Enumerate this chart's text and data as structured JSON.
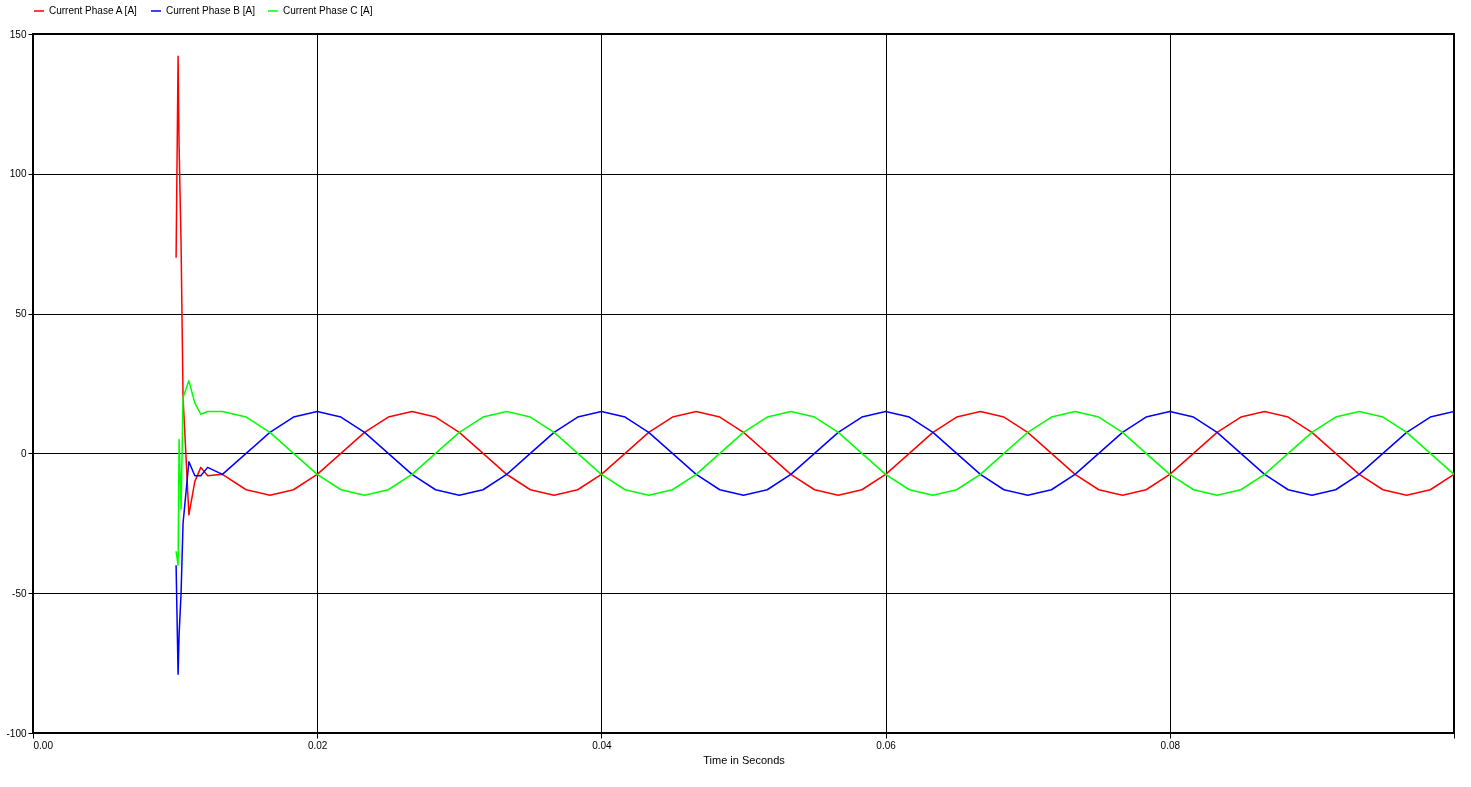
{
  "chart_data": {
    "type": "line",
    "xlabel": "Time in Seconds",
    "x": [
      0.01007,
      0.01021,
      0.01028,
      0.01042,
      0.01056,
      0.01097,
      0.01139,
      0.01181,
      0.01229,
      0.01333,
      0.015,
      0.01667,
      0.01833,
      0.02,
      0.02167,
      0.02333,
      0.025,
      0.02667,
      0.02833,
      0.03,
      0.03167,
      0.03333,
      0.035,
      0.03667,
      0.03833,
      0.04,
      0.04167,
      0.04333,
      0.045,
      0.04667,
      0.04833,
      0.05,
      0.05167,
      0.05333,
      0.055,
      0.05667,
      0.05833,
      0.06,
      0.06167,
      0.06333,
      0.065,
      0.06667,
      0.06833,
      0.07,
      0.07167,
      0.07333,
      0.075,
      0.07667,
      0.07833,
      0.08,
      0.08167,
      0.08333,
      0.085,
      0.08667,
      0.08833,
      0.09,
      0.09167,
      0.09333,
      0.095,
      0.09667,
      0.09833,
      0.1
    ],
    "series": [
      {
        "name": "Current Phase A [A]",
        "color": "#ff0000",
        "values": [
          70,
          142,
          110,
          75,
          20,
          -22,
          -10,
          -5,
          -8,
          -7.5,
          -13,
          -15,
          -13,
          -7.5,
          0,
          7.5,
          13,
          15,
          13,
          7.5,
          0,
          -7.5,
          -13,
          -15,
          -13,
          -7.5,
          0,
          7.5,
          13,
          15,
          13,
          7.5,
          0,
          -7.5,
          -13,
          -15,
          -13,
          -7.5,
          0,
          7.5,
          13,
          15,
          13,
          7.5,
          0,
          -7.5,
          -13,
          -15,
          -13,
          -7.5,
          0,
          7.5,
          13,
          15,
          13,
          7.5,
          0,
          -7.5,
          -13,
          -15,
          -13,
          -7.5
        ]
      },
      {
        "name": "Current Phase B [A]",
        "color": "#0000ff",
        "values": [
          -40,
          -79,
          -65,
          -50,
          -25,
          -3,
          -8,
          -8,
          -5,
          -7.5,
          0,
          7.5,
          13,
          15,
          13,
          7.5,
          0,
          -7.5,
          -13,
          -15,
          -13,
          -7.5,
          0,
          7.5,
          13,
          15,
          13,
          7.5,
          0,
          -7.5,
          -13,
          -15,
          -13,
          -7.5,
          0,
          7.5,
          13,
          15,
          13,
          7.5,
          0,
          -7.5,
          -13,
          -15,
          -13,
          -7.5,
          0,
          7.5,
          13,
          15,
          13,
          7.5,
          0,
          -7.5,
          -13,
          -15,
          -13,
          -7.5,
          0,
          7.5,
          13,
          15
        ]
      },
      {
        "name": "Current Phase C [A]",
        "color": "#00ff00",
        "values": [
          -35,
          -40,
          5,
          -20,
          20,
          26,
          18,
          14,
          15,
          15,
          13,
          7.5,
          0,
          -7.5,
          -13,
          -15,
          -13,
          -7.5,
          0,
          7.5,
          13,
          15,
          13,
          7.5,
          0,
          -7.5,
          -13,
          -15,
          -13,
          -7.5,
          0,
          7.5,
          13,
          15,
          13,
          7.5,
          0,
          -7.5,
          -13,
          -15,
          -13,
          -7.5,
          0,
          7.5,
          13,
          15,
          13,
          7.5,
          0,
          -7.5,
          -13,
          -15,
          -13,
          -7.5,
          0,
          7.5,
          13,
          15,
          13,
          7.5,
          0,
          -7.5
        ]
      }
    ],
    "xlim": [
      0,
      0.1
    ],
    "xticks": [
      {
        "value": 0,
        "label": "0.00"
      },
      {
        "value": 0.02,
        "label": "0.02"
      },
      {
        "value": 0.04,
        "label": "0.04"
      },
      {
        "value": 0.06,
        "label": "0.06"
      },
      {
        "value": 0.08,
        "label": "0.08"
      },
      {
        "value": 0.1,
        "label": null
      }
    ],
    "ylim": [
      -100,
      150
    ],
    "yticks": [
      -100,
      -50,
      0,
      50,
      100,
      150
    ],
    "grid": true,
    "legend": "top",
    "marker": "none",
    "line_style": "solid"
  }
}
